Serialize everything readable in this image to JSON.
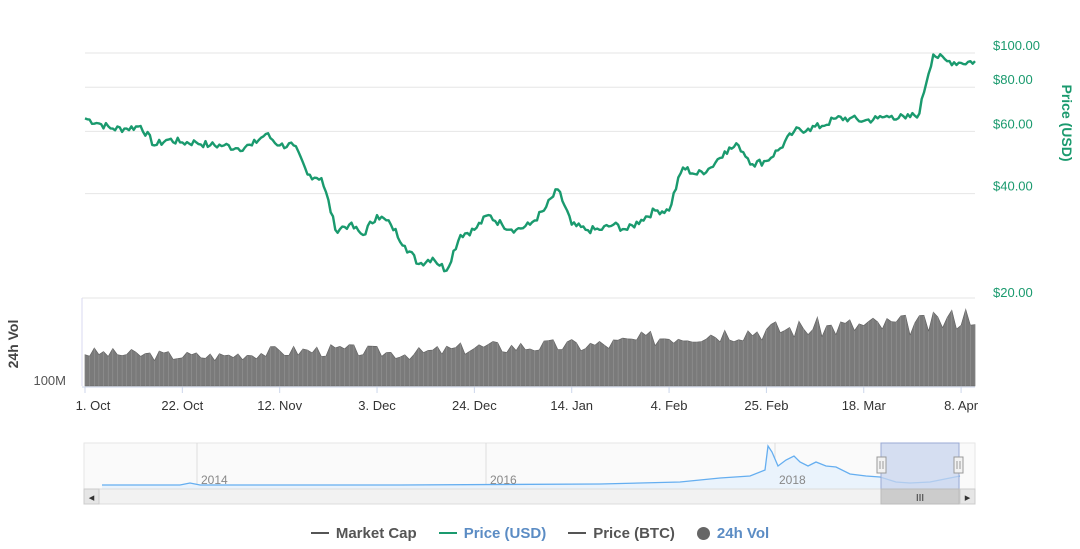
{
  "chart_data": {
    "type": "line",
    "colors": {
      "price_usd": "#1a9a6e",
      "volume": "#7a7a7a",
      "navigator_line": "#65aef0",
      "navigator_selection": "#c8d4ee",
      "legend_active": "#5b8cc4",
      "legend_inactive": "#555555"
    },
    "price_axis": {
      "title": "Price (USD)",
      "scale": "log",
      "ticks": [
        "$100.00",
        "$80.00",
        "$60.00",
        "$40.00",
        "$20.00"
      ],
      "tick_values": [
        100,
        80,
        60,
        40,
        20
      ]
    },
    "volume_axis": {
      "title": "24h Vol",
      "ticks": [
        "100M"
      ]
    },
    "x_axis": {
      "ticks": [
        "1. Oct",
        "22. Oct",
        "12. Nov",
        "3. Dec",
        "24. Dec",
        "14. Jan",
        "4. Feb",
        "25. Feb",
        "18. Mar",
        "8. Apr"
      ]
    },
    "series": [
      {
        "name": "Price (USD)",
        "x": [
          "2017-10-01",
          "2017-10-04",
          "2017-10-07",
          "2017-10-10",
          "2017-10-13",
          "2017-10-16",
          "2017-10-19",
          "2017-10-22",
          "2017-10-25",
          "2017-10-28",
          "2017-10-31",
          "2017-11-03",
          "2017-11-06",
          "2017-11-09",
          "2017-11-12",
          "2017-11-15",
          "2017-11-18",
          "2017-11-21",
          "2017-11-24",
          "2017-11-27",
          "2017-11-30",
          "2017-12-03",
          "2017-12-06",
          "2017-12-09",
          "2017-12-12",
          "2017-12-15",
          "2017-12-18",
          "2017-12-21",
          "2017-12-24",
          "2017-12-27",
          "2017-12-30",
          "2018-01-02",
          "2018-01-05",
          "2018-01-08",
          "2018-01-11",
          "2018-01-14",
          "2018-01-17",
          "2018-01-20",
          "2018-01-23",
          "2018-01-26",
          "2018-01-29",
          "2018-02-01",
          "2018-02-04",
          "2018-02-07",
          "2018-02-10",
          "2018-02-13",
          "2018-02-16",
          "2018-02-19",
          "2018-02-22",
          "2018-02-25",
          "2018-02-28",
          "2018-03-03",
          "2018-03-06",
          "2018-03-09",
          "2018-03-12",
          "2018-03-15",
          "2018-03-18",
          "2018-03-21",
          "2018-03-24",
          "2018-03-27",
          "2018-03-30",
          "2018-04-02",
          "2018-04-05",
          "2018-04-08",
          "2018-04-11"
        ],
        "values": [
          62,
          60,
          58,
          58,
          59,
          52,
          54,
          53,
          53,
          52,
          52,
          51,
          52,
          56,
          52,
          52,
          43,
          42,
          30,
          31,
          29,
          33,
          31,
          27,
          24,
          25,
          23,
          29,
          30,
          33,
          31,
          30,
          31,
          34,
          39,
          31,
          30,
          30,
          31,
          30,
          32,
          34,
          34,
          45,
          43,
          45,
          50,
          52,
          46,
          47,
          51,
          57,
          58,
          59,
          62,
          62,
          61,
          62,
          63,
          62,
          64,
          94,
          90,
          89,
          90
        ]
      },
      {
        "name": "24h Vol",
        "x": [
          "2017-10-01",
          "2017-10-15",
          "2017-10-29",
          "2017-11-12",
          "2017-11-26",
          "2017-12-10",
          "2017-12-24",
          "2018-01-07",
          "2018-01-21",
          "2018-02-04",
          "2018-02-18",
          "2018-03-04",
          "2018-03-18",
          "2018-04-01",
          "2018-04-11"
        ],
        "values": [
          130,
          120,
          115,
          135,
          140,
          125,
          150,
          155,
          160,
          195,
          210,
          225,
          235,
          240,
          285
        ]
      }
    ],
    "navigator": {
      "labels": [
        "2014",
        "2016",
        "2018"
      ],
      "selection": "Oct 2017 - Apr 2018"
    }
  },
  "legend": [
    {
      "label": "Market Cap",
      "active": false
    },
    {
      "label": "Price (USD)",
      "active": true
    },
    {
      "label": "Price (BTC)",
      "active": false
    },
    {
      "label": "24h Vol",
      "active": true
    }
  ],
  "scrollbar": {
    "left_arrow": "◂",
    "right_arrow": "▸",
    "grip": "III",
    "handle_grip": "II"
  }
}
